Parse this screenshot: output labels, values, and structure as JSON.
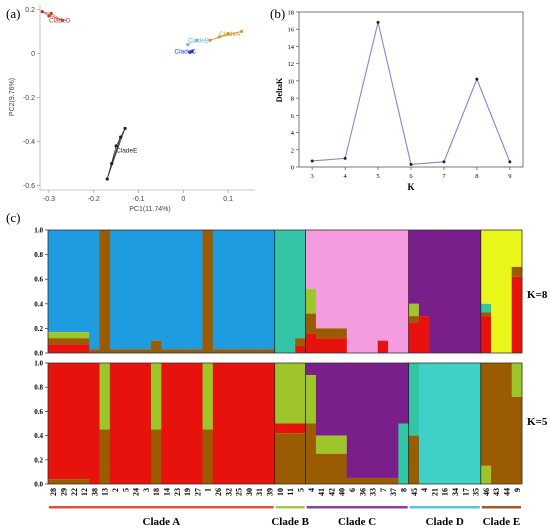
{
  "panels": {
    "a": "(a)",
    "b": "(b)",
    "c": "(c)"
  },
  "colors": {
    "blue": "#1f9be0",
    "red": "#e8120c",
    "olive": "#9b5b00",
    "yellowgreen": "#9ec62b",
    "teal": "#33c5a6",
    "pink": "#f59be0",
    "purple": "#7a1f8a",
    "yellow": "#e9f81a",
    "cyan": "#3fd0c8",
    "clade_bar_A": "#d9533a",
    "clade_bar_B": "#a8c84a",
    "clade_bar_C": "#8d3fa6",
    "clade_bar_D": "#52c9d3",
    "clade_bar_E": "#a05a2a",
    "line_b": "#8f7fd6"
  },
  "chart_data": [
    {
      "id": "pca",
      "type": "scatter",
      "title": "",
      "xlabel": "PC1(11.74%)",
      "ylabel": "PC2(9.76%)",
      "xlim": [
        -0.32,
        0.16
      ],
      "ylim": [
        -0.62,
        0.22
      ],
      "xticks": [
        -0.3,
        -0.2,
        -0.1,
        0,
        0.1
      ],
      "yticks": [
        0.2,
        0,
        -0.2,
        -0.4,
        -0.6
      ],
      "xtick_labels": [
        "-0.3",
        "-0.2",
        "-0.1",
        "0",
        "0.1"
      ],
      "ytick_labels": [
        "0.2",
        "0",
        "-0.2",
        "-0.4",
        "-0.6"
      ],
      "labels": [
        {
          "text": "CladeD",
          "x": -0.3,
          "y": 0.14,
          "color": "#c0392b"
        },
        {
          "text": "CladeA",
          "x": 0.08,
          "y": 0.08,
          "color": "#d59a2a"
        },
        {
          "text": "CladeB",
          "x": 0.01,
          "y": 0.05,
          "color": "#6fb4e4"
        },
        {
          "text": "CladeC",
          "x": -0.02,
          "y": 0.0,
          "color": "#1e3ad2"
        },
        {
          "text": "CladeE",
          "x": -0.15,
          "y": -0.45,
          "color": "#222222"
        }
      ],
      "series": [
        {
          "points": [
            [
              -0.315,
              0.19
            ],
            [
              -0.27,
              0.15
            ],
            [
              -0.3,
              0.17
            ],
            [
              -0.295,
              0.182
            ]
          ],
          "color": "#c0392b"
        },
        {
          "points": [
            [
              0.06,
              0.06
            ],
            [
              0.13,
              0.1
            ],
            [
              0.1,
              0.09
            ],
            [
              0.08,
              0.075
            ]
          ],
          "color": "#d59a2a"
        },
        {
          "points": [
            [
              0.01,
              0.04
            ],
            [
              0.03,
              0.06
            ]
          ],
          "color": "#6fb4e4"
        },
        {
          "points": [
            [
              0.02,
              0.01
            ],
            [
              0.015,
              0.005
            ]
          ],
          "color": "#1e3ad2"
        },
        {
          "points": [
            [
              -0.17,
              -0.57
            ],
            [
              -0.13,
              -0.34
            ],
            [
              -0.15,
              -0.42
            ],
            [
              -0.16,
              -0.5
            ],
            [
              -0.14,
              -0.38
            ]
          ],
          "color": "#222222"
        }
      ]
    },
    {
      "id": "deltak",
      "type": "line",
      "title": "",
      "xlabel": "K",
      "ylabel": "DeltaK",
      "x": [
        3,
        4,
        5,
        6,
        7,
        8,
        9
      ],
      "values": [
        0.7,
        1.0,
        16.8,
        0.3,
        0.6,
        10.2,
        0.6
      ],
      "xlim": [
        2.6,
        9.4
      ],
      "ylim": [
        0,
        18
      ],
      "yticks": [
        0,
        2,
        4,
        6,
        8,
        10,
        12,
        14,
        16,
        18
      ],
      "ytick_labels": [
        "0",
        "2",
        "4",
        "6",
        "8",
        "10",
        "12",
        "14",
        "16",
        "18"
      ],
      "xtick_labels": [
        "3",
        "4",
        "5",
        "6",
        "7",
        "8",
        "9"
      ]
    },
    {
      "id": "structure",
      "type": "bar",
      "title": "",
      "stacked": true,
      "ytick_labels": [
        "0.0",
        "0.2",
        "0.4",
        "0.6",
        "0.8",
        "1.0"
      ],
      "k_labels": [
        "K=8",
        "K=5"
      ],
      "sample_labels": [
        "28",
        "29",
        "22",
        "12",
        "38",
        "13",
        "2",
        "5",
        "24",
        "3",
        "18",
        "14",
        "23",
        "19",
        "27",
        "1",
        "26",
        "32",
        "25",
        "30",
        "31",
        "39",
        "10",
        "11",
        "5",
        "4",
        "41",
        "42",
        "40",
        "6",
        "36",
        "33",
        "7",
        "37",
        "8",
        "45",
        "4",
        "21",
        "16",
        "34",
        "17",
        "35",
        "46",
        "43",
        "44",
        "9"
      ],
      "clades": [
        {
          "name": "Clade A",
          "start": 0,
          "end": 22
        },
        {
          "name": "Clade B",
          "start": 22,
          "end": 25
        },
        {
          "name": "Clade C",
          "start": 25,
          "end": 35
        },
        {
          "name": "Clade D",
          "start": 35,
          "end": 42
        },
        {
          "name": "Clade E",
          "start": 42,
          "end": 46
        }
      ]
    }
  ]
}
